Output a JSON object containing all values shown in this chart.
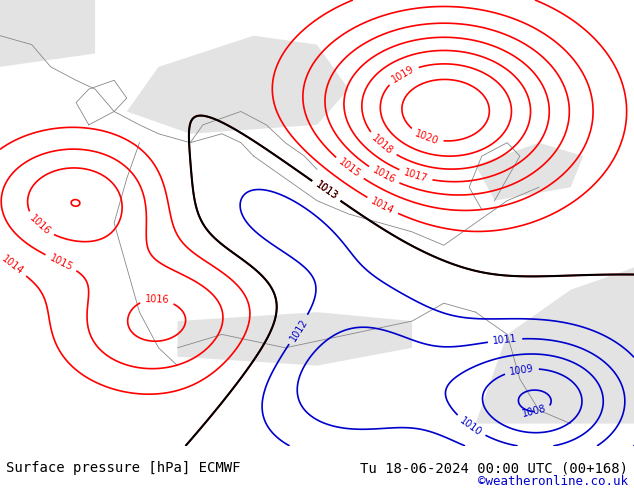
{
  "title_left": "Surface pressure [hPa] ECMWF",
  "title_right": "Tu 18-06-2024 00:00 UTC (00+168)",
  "credit": "©weatheronline.co.uk",
  "bg_color": "#c8e6c9",
  "land_color": "#c8e6c9",
  "sea_color": "#e8e8e8",
  "red_isobar_color": "#ff0000",
  "black_isobar_color": "#000000",
  "blue_isobar_color": "#0000cc",
  "footer_bg": "#ffffff",
  "footer_text_color": "#000000",
  "credit_color": "#0000cc",
  "figsize": [
    6.34,
    4.9
  ],
  "dpi": 100
}
